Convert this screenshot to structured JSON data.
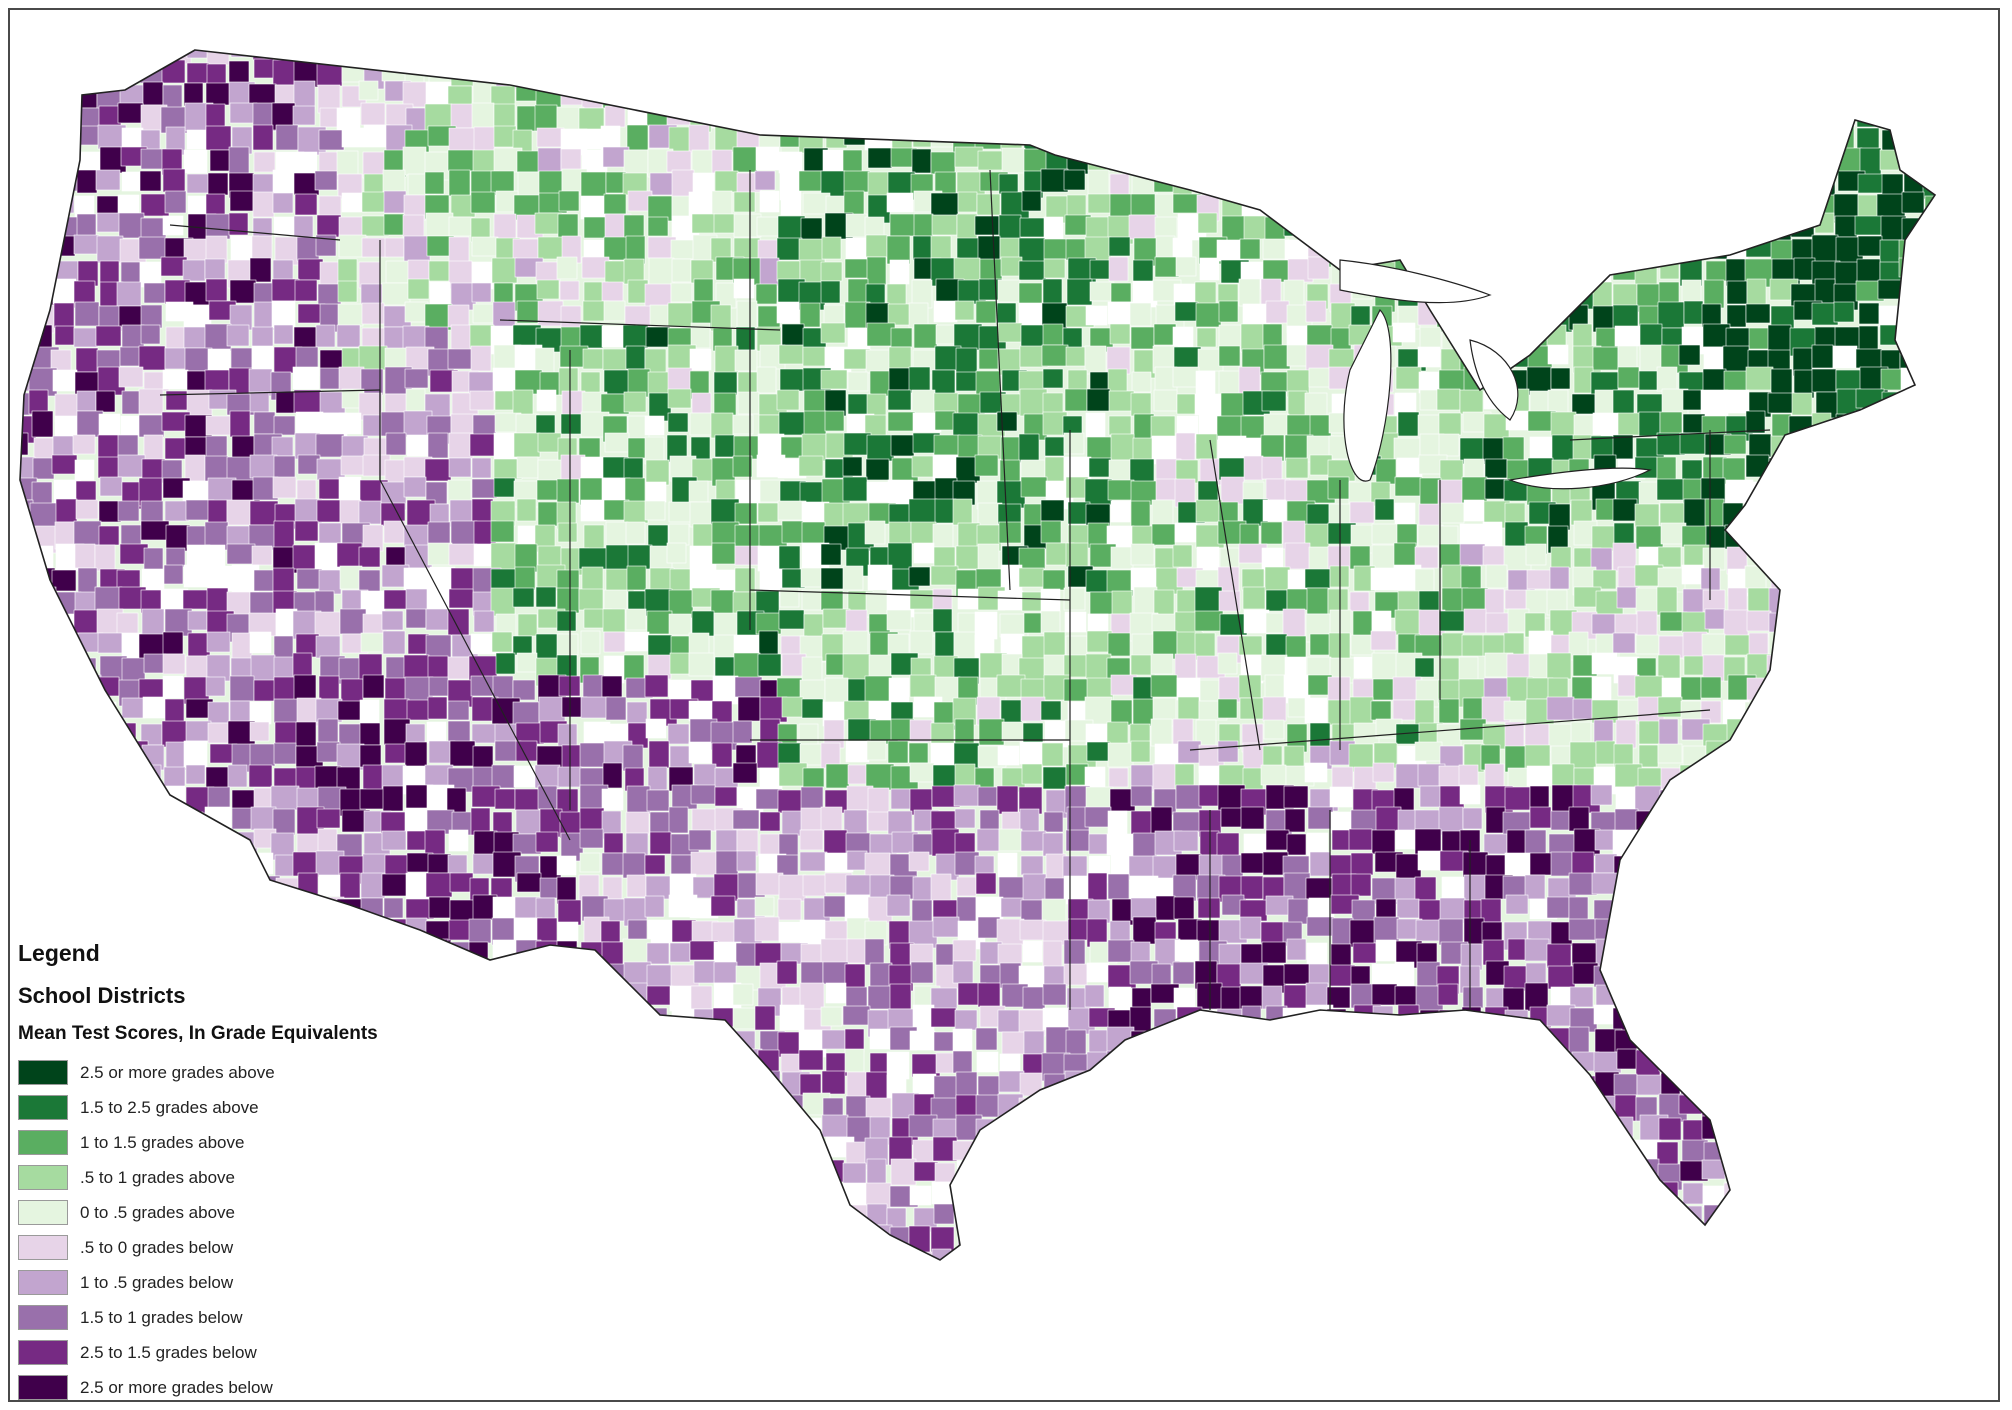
{
  "legend": {
    "title": "Legend",
    "subtitle": "School Districts",
    "heading": "Mean Test Scores, In Grade Equivalents",
    "classes": [
      {
        "label": "2.5 or more grades above",
        "color": "#00441b"
      },
      {
        "label": "1.5 to 2.5 grades above",
        "color": "#1b7837"
      },
      {
        "label": "1 to 1.5 grades above",
        "color": "#5aae61"
      },
      {
        "label": ".5 to 1 grades above",
        "color": "#a6dba0"
      },
      {
        "label": "0 to .5 grades above",
        "color": "#e5f5e0"
      },
      {
        "label": ".5 to 0 grades below",
        "color": "#e7d4e8"
      },
      {
        "label": "1 to .5 grades below",
        "color": "#c2a5cf"
      },
      {
        "label": "1.5 to 1 grades below",
        "color": "#9970ab"
      },
      {
        "label": "2.5 to 1.5 grades below",
        "color": "#762a83"
      },
      {
        "label": "2.5 or more grades below",
        "color": "#40004b"
      }
    ]
  },
  "map": {
    "background": "#ffffff",
    "border_color": "#4a4a4a",
    "boundary_color": "#222222"
  }
}
